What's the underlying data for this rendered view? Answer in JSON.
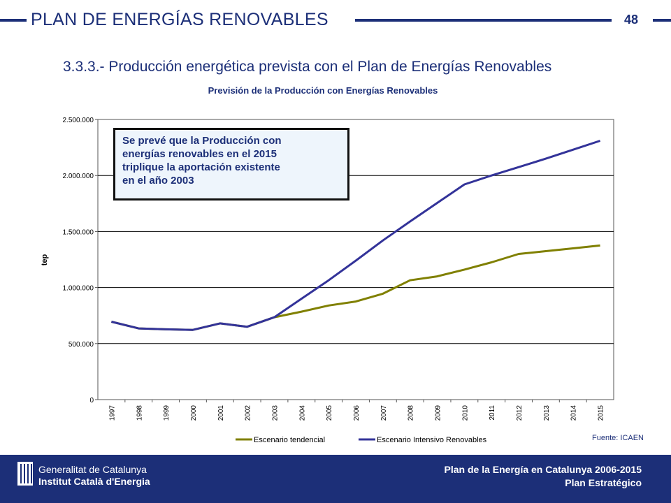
{
  "header": {
    "title": "PLAN DE ENERGÍAS RENOVABLES",
    "page_number": "48",
    "accent_color": "#1c2f78"
  },
  "section_title": "3.3.3.- Producción energética prevista con el Plan de Energías Renovables",
  "callout": {
    "lines": [
      "Se prevé que la Producción con",
      "energías renovables en el 2015",
      "triplique la aportación existente",
      "en el año 2003"
    ]
  },
  "source": "Fuente: ICAEN",
  "footer": {
    "org_line1": "Generalitat de Catalunya",
    "org_line2": "Institut Català d'Energia",
    "plan_line1": "Plan de la Energía en Catalunya 2006-2015",
    "plan_line2": "Plan Estratégico"
  },
  "chart_data": {
    "type": "line",
    "title": "Previsión de la Producción con Energías Renovables",
    "xlabel": "",
    "ylabel": "tep",
    "ylim": [
      0,
      2500000
    ],
    "yticks": [
      0,
      500000,
      1000000,
      1500000,
      2000000,
      2500000
    ],
    "ytick_labels": [
      "0",
      "500.000",
      "1.000.000",
      "1.500.000",
      "2.000.000",
      "2.500.000"
    ],
    "grid": true,
    "legend_position": "bottom",
    "categories": [
      "1997",
      "1998",
      "1999",
      "2000",
      "2001",
      "2002",
      "2003",
      "2004",
      "2005",
      "2006",
      "2007",
      "2008",
      "2009",
      "2010",
      "2011",
      "2012",
      "2013",
      "2014",
      "2015"
    ],
    "series": [
      {
        "name": "Escenario tendencial",
        "color": "#808000",
        "values": [
          695000,
          635000,
          627000,
          622000,
          680000,
          650000,
          735000,
          785000,
          840000,
          875000,
          945000,
          1065000,
          1100000,
          1160000,
          1225000,
          1300000,
          1325000,
          1350000,
          1375000
        ]
      },
      {
        "name": "Escenario Intensivo Renovables",
        "color": "#333399",
        "values": [
          695000,
          635000,
          627000,
          622000,
          680000,
          650000,
          735000,
          900000,
          1065000,
          1240000,
          1420000,
          1590000,
          1755000,
          1920000,
          2000000,
          2075000,
          2150000,
          2230000,
          2310000
        ]
      }
    ]
  }
}
